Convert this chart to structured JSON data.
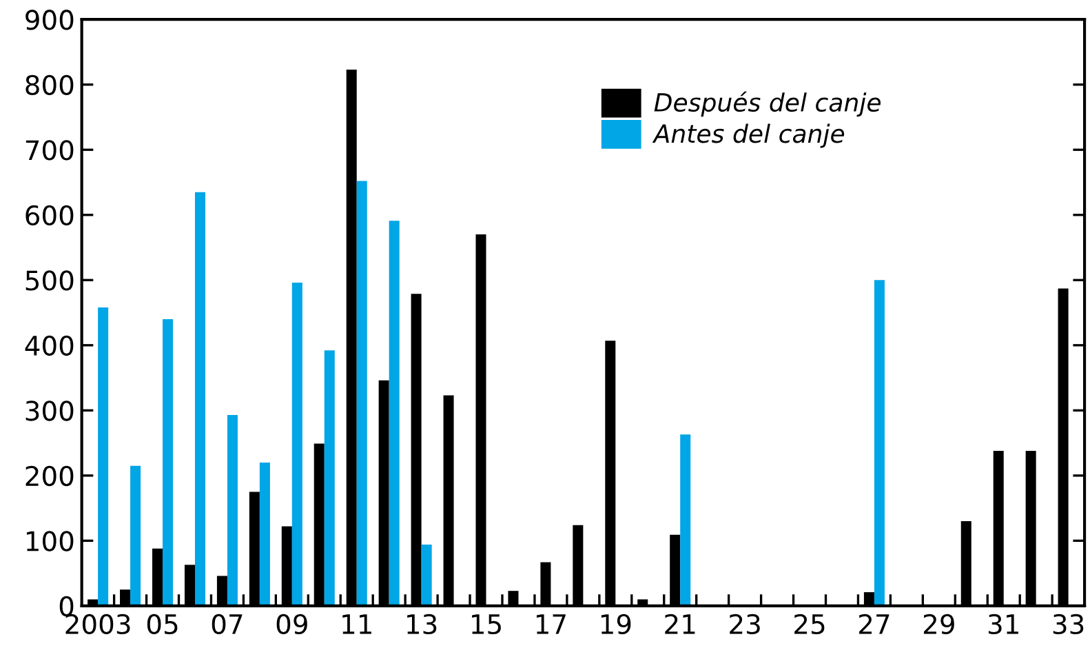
{
  "chart_data": {
    "type": "bar",
    "categories": [
      "2003",
      null,
      "05",
      null,
      "07",
      null,
      "09",
      null,
      "11",
      null,
      "13",
      null,
      "15",
      null,
      "17",
      null,
      "19",
      null,
      "21",
      null,
      "23",
      null,
      "25",
      null,
      "27",
      null,
      "29",
      null,
      "31",
      null,
      "33"
    ],
    "series": [
      {
        "name": "Después del canje",
        "color": "#000000",
        "values": [
          10,
          25,
          88,
          63,
          46,
          175,
          122,
          249,
          823,
          346,
          479,
          323,
          570,
          23,
          67,
          124,
          407,
          10,
          109,
          null,
          null,
          null,
          null,
          null,
          21,
          null,
          null,
          130,
          238,
          238,
          487
        ]
      },
      {
        "name": "Antes del canje",
        "color": "#00a6e6",
        "values": [
          458,
          215,
          440,
          635,
          293,
          220,
          496,
          392,
          652,
          591,
          94,
          null,
          null,
          null,
          null,
          null,
          null,
          null,
          263,
          null,
          null,
          null,
          null,
          null,
          500,
          null,
          null,
          null,
          null,
          null,
          null
        ]
      }
    ],
    "ylim": [
      0,
      900
    ],
    "yticks": [
      0,
      100,
      200,
      300,
      400,
      500,
      600,
      700,
      800,
      900
    ],
    "grid": false,
    "legend": "top right"
  }
}
